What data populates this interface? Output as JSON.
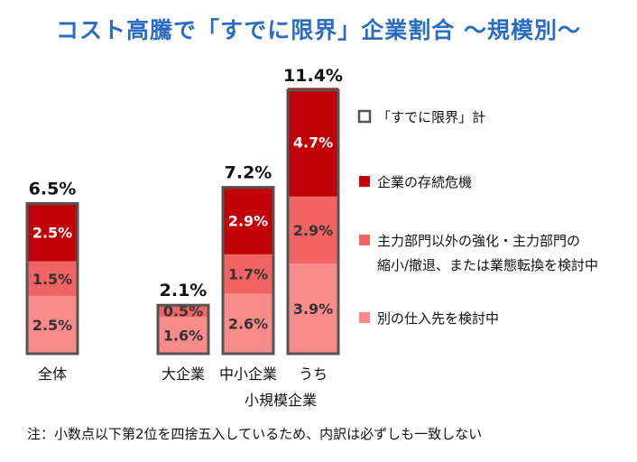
{
  "title": "コスト高騰で「すでに限界」企業割合 ～規模別～",
  "footnote": "注：小数点以下第2位を四捨五入しているため、内訳は必ずしも一致しない",
  "chart_data": {
    "type": "bar",
    "stacked": true,
    "categories": [
      "全体",
      "大企業",
      "中小企業",
      "うち"
    ],
    "category_group": {
      "label": "小規模企業",
      "members": [
        "中小企業",
        "うち"
      ]
    },
    "totals": [
      6.5,
      2.1,
      7.2,
      11.4
    ],
    "total_labels": [
      "6.5%",
      "2.1%",
      "7.2%",
      "11.4%"
    ],
    "series": [
      {
        "name": "別の仕入先を検討中",
        "color": "#f98b8b",
        "values": [
          2.5,
          1.6,
          2.6,
          3.9
        ],
        "labels": [
          "2.5%",
          "1.6%",
          "2.6%",
          "3.9%"
        ]
      },
      {
        "name": "主力部門以外の強化・主力部門の縮小/撤退、または業態転換を検討中",
        "color": "#f26464",
        "values": [
          1.5,
          0.5,
          1.7,
          2.9
        ],
        "labels": [
          "1.5%",
          "0.5%",
          "1.7%",
          "2.9%"
        ]
      },
      {
        "name": "企業の存続危機",
        "color": "#c10008",
        "values": [
          2.5,
          0.0,
          2.9,
          4.7
        ],
        "labels": [
          "2.5%",
          "",
          "2.9%",
          "4.7%"
        ]
      }
    ],
    "legend": {
      "placement": "right",
      "items": [
        {
          "label_lines": [
            "「すでに限界」計"
          ],
          "color": "#ffffff",
          "outline": true
        },
        {
          "label_lines": [
            "企業の存続危機"
          ],
          "color": "#c10008"
        },
        {
          "label_lines": [
            "主力部門以外の強化・主力部門の",
            "縮小/撤退、または業態転換を検討中"
          ],
          "color": "#f26464"
        },
        {
          "label_lines": [
            "別の仕入先を検討中"
          ],
          "color": "#f98b8b"
        }
      ]
    },
    "ylim": [
      0,
      11.4
    ],
    "grid": false
  }
}
